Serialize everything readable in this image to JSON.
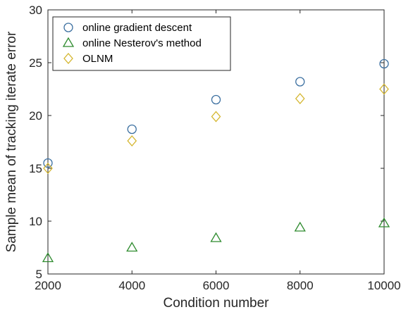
{
  "chart_data": {
    "type": "scatter",
    "title": "",
    "xlabel": "Condition number",
    "ylabel": "Sample mean of tracking iterate error",
    "xlim": [
      2000,
      10000
    ],
    "ylim": [
      5,
      30
    ],
    "xticks": [
      2000,
      4000,
      6000,
      8000,
      10000
    ],
    "yticks": [
      5,
      10,
      15,
      20,
      25,
      30
    ],
    "grid": false,
    "legend_position": "top-left",
    "series": [
      {
        "name": "online gradient descent",
        "marker": "circle",
        "color": "#3b6fa0",
        "x": [
          2000,
          4000,
          6000,
          8000,
          10000
        ],
        "y": [
          15.5,
          18.7,
          21.5,
          23.2,
          24.9
        ]
      },
      {
        "name": "online Nesterov's method",
        "marker": "triangle",
        "color": "#2e8b2e",
        "x": [
          2000,
          4000,
          6000,
          8000,
          10000
        ],
        "y": [
          6.5,
          7.5,
          8.4,
          9.4,
          9.8
        ]
      },
      {
        "name": "OLNM",
        "marker": "diamond",
        "color": "#d4b52c",
        "x": [
          2000,
          4000,
          6000,
          8000,
          10000
        ],
        "y": [
          15.0,
          17.6,
          19.9,
          21.6,
          22.5
        ]
      }
    ]
  }
}
